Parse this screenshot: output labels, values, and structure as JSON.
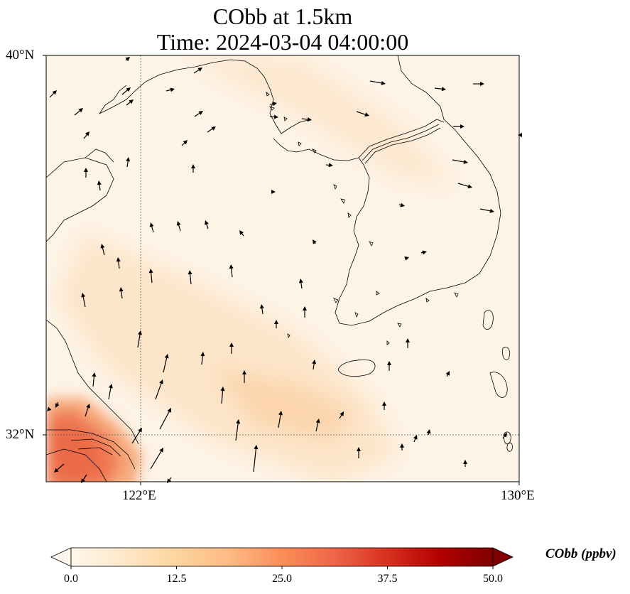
{
  "title": {
    "line1": "CObb at 1.5km",
    "line2": "Time: 2024-03-04 04:00:00"
  },
  "map": {
    "projection": "PlateCarree",
    "lon_range": [
      118.0,
      130.0
    ],
    "lat_range": [
      30.8,
      40.0
    ],
    "lat_ticks": [
      {
        "value": 40,
        "label": "40°N"
      },
      {
        "value": 32,
        "label": "32°N"
      }
    ],
    "lon_ticks": [
      {
        "value": 122,
        "label": "122°E"
      },
      {
        "value": 130,
        "label": "130°E"
      }
    ],
    "gridlines": "dotted at 122°E and 32°N",
    "field": "CObb concentration (ppbv), filled shading; highest near the Yangtze River mouth (~25–30 ppbv), a weaker band (~8–12 ppbv) extending northwest–southeast across the Yellow Sea",
    "wind_vectors": "black arrows; mostly northward/north-northeastward south of 36°N, eastward over the Korean Peninsula and north of 38°N"
  },
  "colorbar": {
    "label": "CObb (ppbv)",
    "colormap": "OrRd",
    "min": 0.0,
    "max": 50.0,
    "extend": "both",
    "ticks": [
      "0.0",
      "12.5",
      "25.0",
      "37.5",
      "50.0"
    ],
    "colors": [
      "#fff7ec",
      "#fee8c8",
      "#fdd49e",
      "#fdbb84",
      "#fc8d59",
      "#ef6548",
      "#d7301f",
      "#b30000",
      "#7f0000"
    ]
  }
}
